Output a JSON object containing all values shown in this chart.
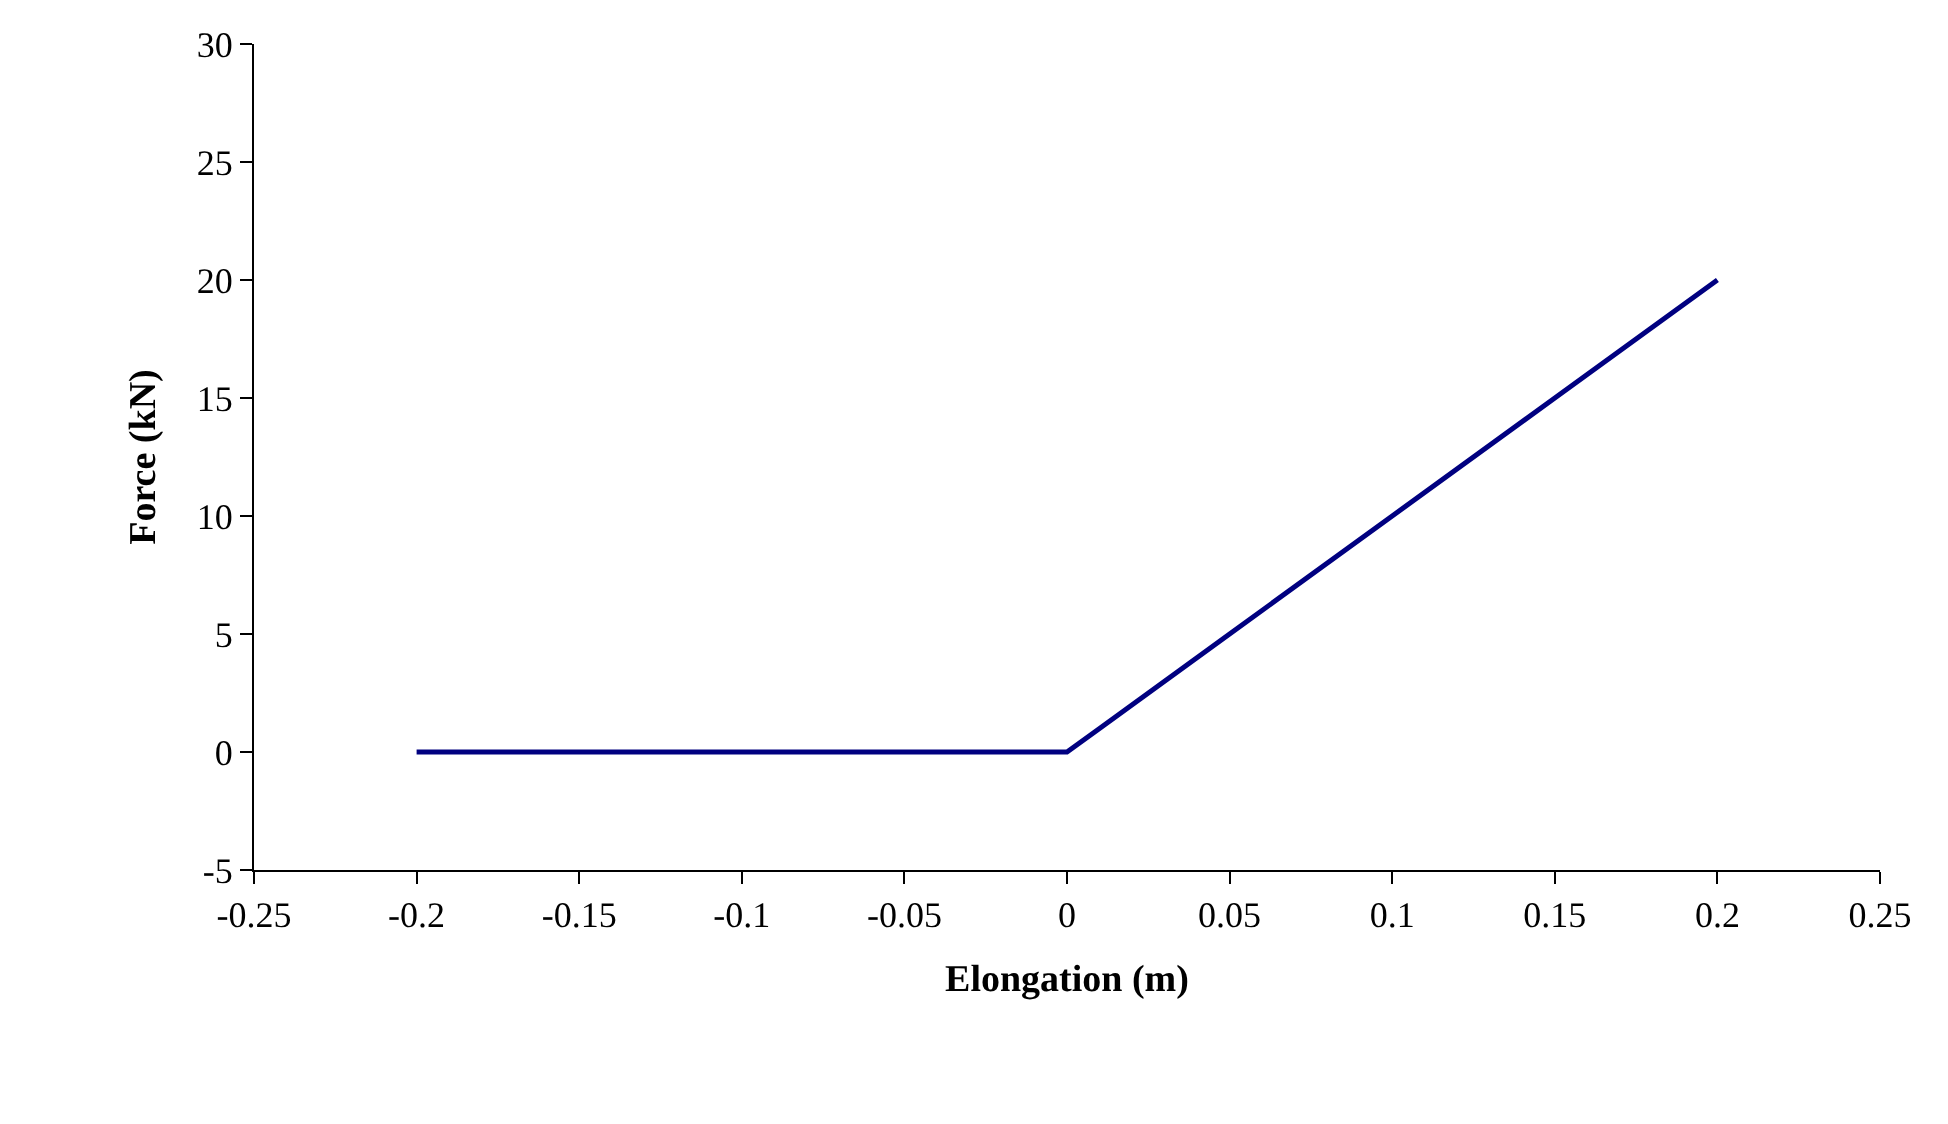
{
  "chart_data": {
    "type": "line",
    "xlabel": "Elongation (m)",
    "ylabel": "Force (kN)",
    "x": [
      -0.2,
      -0.1,
      0,
      0.01,
      0.05,
      0.1,
      0.15,
      0.2
    ],
    "series": [
      {
        "color": "#000080",
        "values": [
          0,
          0,
          0,
          1,
          5,
          10,
          15,
          20
        ]
      }
    ],
    "xlim": [
      -0.25,
      0.25
    ],
    "xticks": [
      -0.25,
      -0.2,
      -0.15,
      -0.1,
      -0.05,
      0,
      0.05,
      0.1,
      0.15,
      0.2,
      0.25
    ],
    "ylim": [
      -5,
      30
    ],
    "yticks": [
      -5,
      0,
      5,
      10,
      15,
      20,
      25,
      30
    ],
    "marker": "none",
    "line_style": "solid"
  }
}
